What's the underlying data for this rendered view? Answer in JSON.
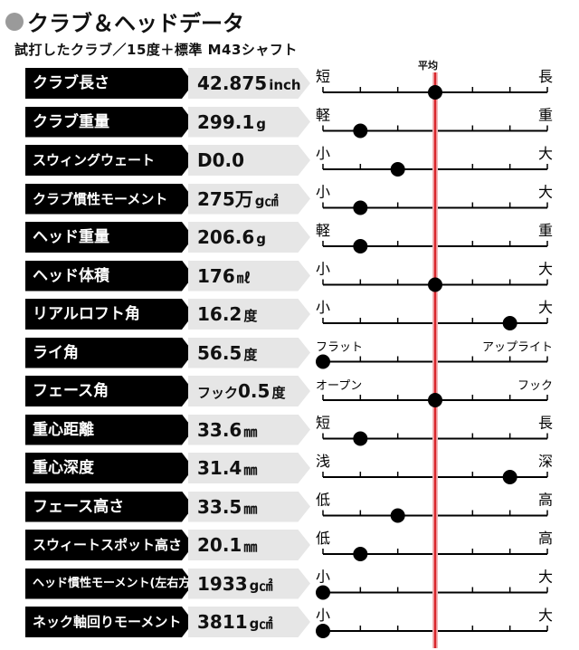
{
  "title": "クラブ＆ヘッドデータ",
  "subtitle": "試打したクラブ／15度＋標準 M43シャフト",
  "chart_data": {
    "type": "scale",
    "average_label": "平均",
    "scale_ticks": 7,
    "average_position": 3,
    "rows": [
      {
        "label": "クラブ長さ",
        "prefix": "",
        "value": "42.875",
        "unit": "inch",
        "left": "短",
        "right": "長",
        "position": 3
      },
      {
        "label": "クラブ重量",
        "prefix": "",
        "value": "299.1",
        "unit": "g",
        "left": "軽",
        "right": "重",
        "position": 1
      },
      {
        "label": "スウィングウェート",
        "prefix": "",
        "value": "D0.0",
        "unit": "",
        "left": "小",
        "right": "大",
        "position": 2
      },
      {
        "label": "クラブ慣性モーメント",
        "prefix": "",
        "value": "275万",
        "unit": "g㎠",
        "left": "小",
        "right": "大",
        "position": 1
      },
      {
        "label": "ヘッド重量",
        "prefix": "",
        "value": "206.6",
        "unit": "g",
        "left": "軽",
        "right": "重",
        "position": 1
      },
      {
        "label": "ヘッド体積",
        "prefix": "",
        "value": "176",
        "unit": "㎖",
        "left": "小",
        "right": "大",
        "position": 3
      },
      {
        "label": "リアルロフト角",
        "prefix": "",
        "value": "16.2",
        "unit": "度",
        "left": "小",
        "right": "大",
        "position": 5
      },
      {
        "label": "ライ角",
        "prefix": "",
        "value": "56.5",
        "unit": "度",
        "left": "フラット",
        "right": "アップライト",
        "position": 0
      },
      {
        "label": "フェース角",
        "prefix": "フック",
        "value": "0.5",
        "unit": "度",
        "left": "オープン",
        "right": "フック",
        "position": 3
      },
      {
        "label": "重心距離",
        "prefix": "",
        "value": "33.6",
        "unit": "㎜",
        "left": "短",
        "right": "長",
        "position": 1
      },
      {
        "label": "重心深度",
        "prefix": "",
        "value": "31.4",
        "unit": "㎜",
        "left": "浅",
        "right": "深",
        "position": 5
      },
      {
        "label": "フェース高さ",
        "prefix": "",
        "value": "33.5",
        "unit": "㎜",
        "left": "低",
        "right": "高",
        "position": 2
      },
      {
        "label": "スウィートスポット高さ",
        "prefix": "",
        "value": "20.1",
        "unit": "㎜",
        "left": "低",
        "right": "高",
        "position": 1
      },
      {
        "label": "ヘッド慣性モーメント(左右方向)",
        "prefix": "",
        "value": "1933",
        "unit": "g㎠",
        "left": "小",
        "right": "大",
        "position": 0
      },
      {
        "label": "ネック軸回りモーメント",
        "prefix": "",
        "value": "3811",
        "unit": "g㎠",
        "left": "小",
        "right": "大",
        "position": 0
      }
    ]
  },
  "colors": {
    "average_line": "#d9262c",
    "label_bg": "#000000",
    "value_bg": "#e6e6e6",
    "marker": "#000000"
  }
}
